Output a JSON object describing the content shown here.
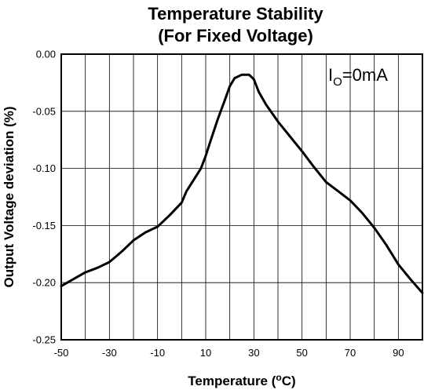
{
  "chart_data": {
    "type": "line",
    "title": "Temperature Stability",
    "subtitle": "(For Fixed Voltage)",
    "xlabel": "Temperature (",
    "xlabel_sup": "o",
    "xlabel_end": "C)",
    "ylabel": "Output Voltage deviation (%)",
    "xlim": [
      -50,
      100
    ],
    "ylim": [
      -0.25,
      0.0
    ],
    "x_ticks": [
      -50,
      -30,
      -10,
      10,
      30,
      50,
      70,
      90
    ],
    "x_tick_labels": [
      "-50",
      "-30",
      "-10",
      "10",
      "30",
      "50",
      "70",
      "90"
    ],
    "y_ticks": [
      0.0,
      -0.05,
      -0.1,
      -0.15,
      -0.2,
      -0.25
    ],
    "y_tick_labels": [
      "0.00",
      "-0.05",
      "-0.10",
      "-0.15",
      "-0.20",
      "-0.25"
    ],
    "x_grid_step": 10,
    "y_grid_step": 0.05,
    "grid": true,
    "annotation": {
      "main": "I",
      "sub": "O",
      "rest": "=0mA"
    },
    "series": [
      {
        "color": "#000000",
        "x": [
          -50,
          -45,
          -40,
          -35,
          -30,
          -25,
          -20,
          -15,
          -10,
          -5,
          0,
          2,
          5,
          8,
          10,
          12,
          15,
          18,
          20,
          22,
          25,
          28,
          30,
          32,
          35,
          40,
          45,
          50,
          55,
          60,
          65,
          70,
          75,
          80,
          85,
          90,
          95,
          100
        ],
        "y": [
          -0.203,
          -0.197,
          -0.191,
          -0.187,
          -0.182,
          -0.173,
          -0.163,
          -0.156,
          -0.151,
          -0.141,
          -0.13,
          -0.12,
          -0.11,
          -0.1,
          -0.089,
          -0.076,
          -0.057,
          -0.04,
          -0.028,
          -0.021,
          -0.018,
          -0.018,
          -0.022,
          -0.033,
          -0.044,
          -0.059,
          -0.072,
          -0.085,
          -0.099,
          -0.112,
          -0.12,
          -0.128,
          -0.139,
          -0.152,
          -0.167,
          -0.184,
          -0.197,
          -0.209
        ]
      }
    ]
  }
}
